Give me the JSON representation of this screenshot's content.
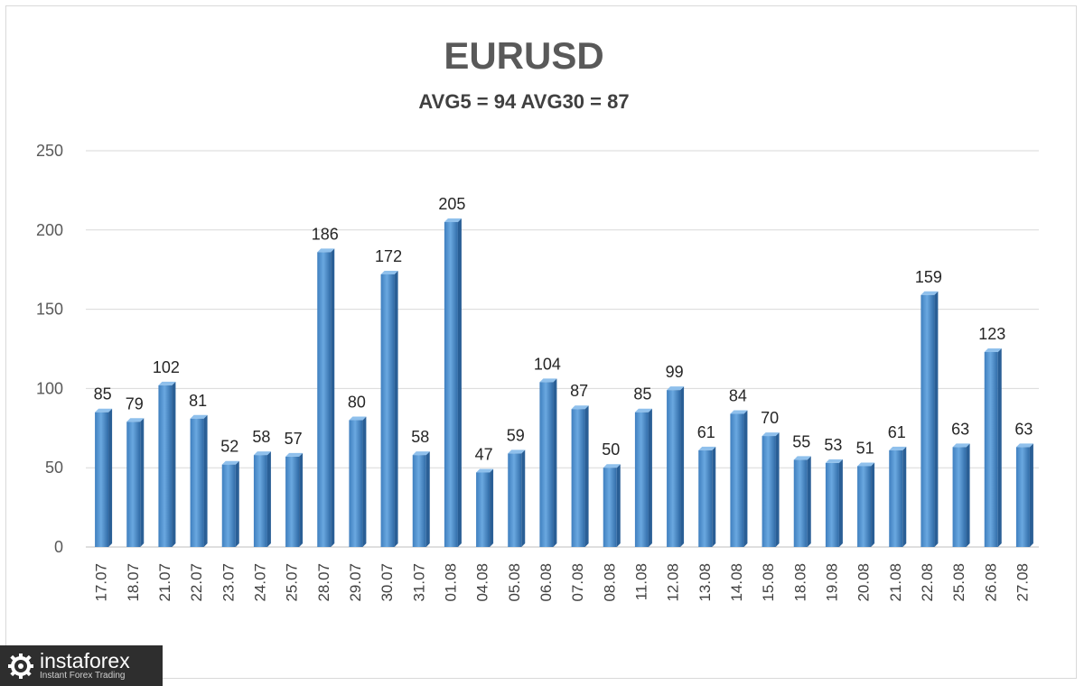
{
  "chart_data": {
    "type": "bar",
    "title": "EURUSD",
    "subtitle": "AVG5 = 94 AVG30 = 87",
    "categories": [
      "17.07",
      "18.07",
      "21.07",
      "22.07",
      "23.07",
      "24.07",
      "25.07",
      "28.07",
      "29.07",
      "30.07",
      "31.07",
      "01.08",
      "04.08",
      "05.08",
      "06.08",
      "07.08",
      "08.08",
      "11.08",
      "12.08",
      "13.08",
      "14.08",
      "15.08",
      "18.08",
      "19.08",
      "20.08",
      "21.08",
      "22.08",
      "25.08",
      "26.08",
      "27.08"
    ],
    "values": [
      85,
      79,
      102,
      81,
      52,
      58,
      57,
      186,
      80,
      172,
      58,
      205,
      47,
      59,
      104,
      87,
      50,
      85,
      99,
      61,
      84,
      70,
      55,
      53,
      51,
      61,
      159,
      63,
      123,
      63
    ],
    "ylim": [
      0,
      250
    ],
    "yticks": [
      0,
      50,
      100,
      150,
      200,
      250
    ],
    "grid": true,
    "bar_color": "#5b9bd5"
  },
  "logo": {
    "name": "instaforex",
    "tagline": "Instant Forex Trading"
  }
}
